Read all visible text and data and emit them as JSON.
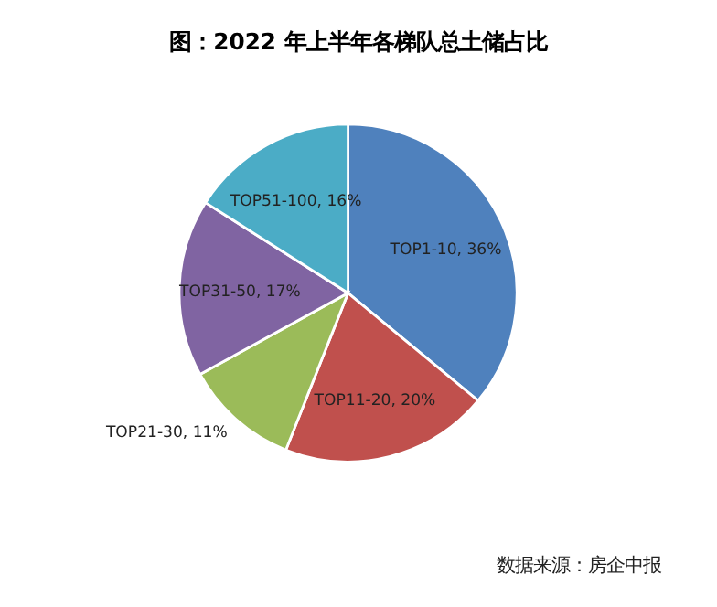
{
  "chart_data": {
    "type": "pie",
    "title": "图：2022 年上半年各梯队总土储占比",
    "categories": [
      "TOP1-10",
      "TOP11-20",
      "TOP21-30",
      "TOP31-50",
      "TOP51-100"
    ],
    "values": [
      36,
      20,
      11,
      17,
      16
    ],
    "value_labels": [
      "36%",
      "20%",
      "11%",
      "17%",
      "16%"
    ],
    "colors": [
      "#4f81bd",
      "#c0504d",
      "#9bbb59",
      "#8064a2",
      "#4bacc6"
    ],
    "annotations": [
      "数据来源：房企中报"
    ],
    "legend": false
  }
}
